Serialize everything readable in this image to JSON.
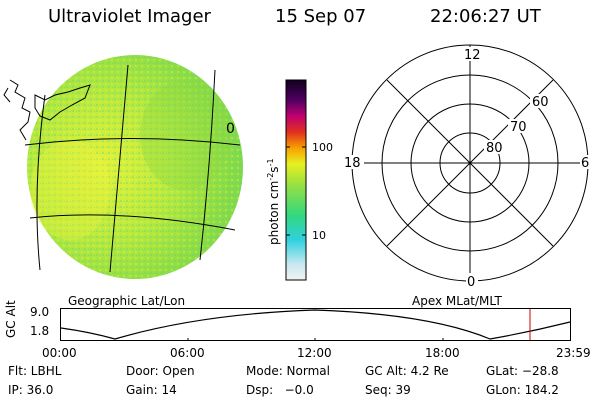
{
  "header": {
    "title": "Ultraviolet Imager",
    "date": "15 Sep 07",
    "time": "22:06:27 UT"
  },
  "left_panel": {
    "caption": "Geographic Lat/Lon",
    "marker": "0"
  },
  "colorbar": {
    "unit_text": "photon cm",
    "unit_sup1": "-2",
    "unit_s": "s",
    "unit_sup2": "-1",
    "ticks": [
      "100",
      "10"
    ]
  },
  "polar_plot": {
    "caption": "Apex MLat/MLT",
    "mlt_labels": {
      "top": "12",
      "left": "18",
      "right": "6",
      "bottom": "0"
    },
    "lat_labels": [
      "60",
      "70",
      "80"
    ]
  },
  "timeline": {
    "axis_title": "GC Alt",
    "y_labels": [
      "9.0",
      "1.8"
    ],
    "x_labels": [
      "00:00",
      "06:00",
      "12:00",
      "18:00",
      "23:59"
    ],
    "current_marker_color": "#cc0000"
  },
  "status": {
    "row1": [
      "Flt: LBHL",
      "Door: Open",
      "Mode: Normal",
      "GC Alt: 4.2 Re",
      "GLat: −28.8"
    ],
    "row2": [
      "IP: 36.0",
      "Gain: 14",
      "Dsp:   −0.0",
      "Seq: 39",
      "GLon: 184.2"
    ]
  },
  "colors": {
    "aurora_green": "#8edd44",
    "aurora_yellow": "#dcf03a"
  }
}
